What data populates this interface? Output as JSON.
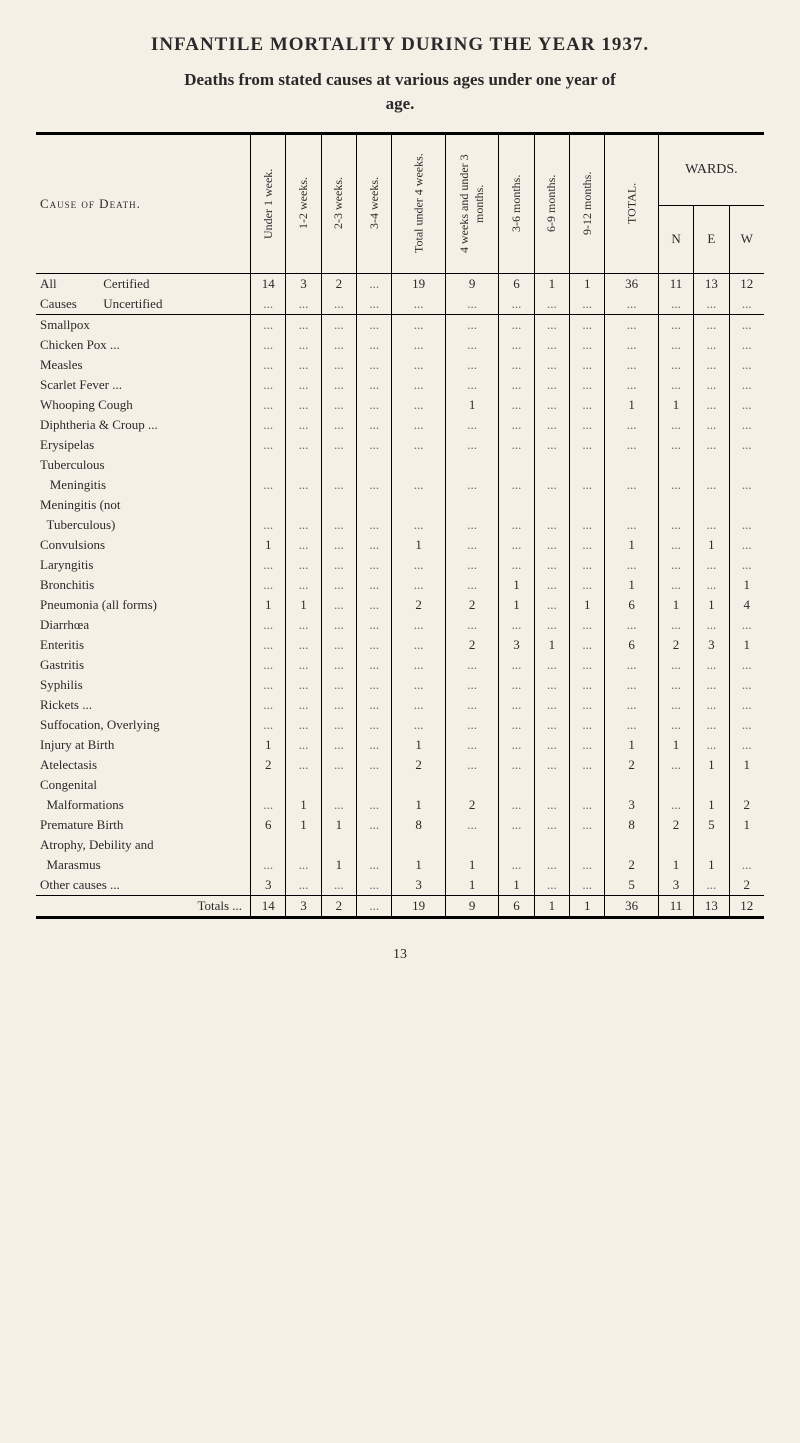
{
  "title": "INFANTILE MORTALITY DURING THE YEAR 1937.",
  "subtitle": "Deaths from stated causes at various ages under one year of",
  "age_word": "age.",
  "page_number": "13",
  "col_headers": {
    "cause": "Cause of Death.",
    "c1": "Under 1 week.",
    "c2": "1-2 weeks.",
    "c3": "2-3 weeks.",
    "c4": "3-4 weeks.",
    "c5": "Total under 4 weeks.",
    "c6": "4 weeks and under 3 months.",
    "c7": "3-6 months.",
    "c8": "6-9 months.",
    "c9": "9-12 months.",
    "c10": "TOTAL.",
    "wards": "WARDS.",
    "N": "N",
    "E": "E",
    "W": "W"
  },
  "summary": {
    "all_label": "All",
    "certified": "Certified",
    "causes_label": "Causes",
    "uncertified": "Uncertified",
    "vals": [
      "14",
      "3",
      "2",
      "...",
      "19",
      "9",
      "6",
      "1",
      "1",
      "36",
      "11",
      "13",
      "12"
    ]
  },
  "rows": [
    {
      "label": "Smallpox",
      "vals": [
        "...",
        "...",
        "...",
        "...",
        "...",
        "...",
        "...",
        "...",
        "...",
        "...",
        "...",
        "...",
        "..."
      ]
    },
    {
      "label": "Chicken Pox ...",
      "vals": [
        "...",
        "...",
        "...",
        "...",
        "...",
        "...",
        "...",
        "...",
        "...",
        "...",
        "...",
        "...",
        "..."
      ]
    },
    {
      "label": "Measles",
      "vals": [
        "...",
        "...",
        "...",
        "...",
        "...",
        "...",
        "...",
        "...",
        "...",
        "...",
        "...",
        "...",
        "..."
      ]
    },
    {
      "label": "Scarlet Fever ...",
      "vals": [
        "...",
        "...",
        "...",
        "...",
        "...",
        "...",
        "...",
        "...",
        "...",
        "...",
        "...",
        "...",
        "..."
      ]
    },
    {
      "label": "Whooping Cough",
      "vals": [
        "...",
        "...",
        "...",
        "...",
        "...",
        "1",
        "...",
        "...",
        "...",
        "1",
        "1",
        "...",
        "..."
      ]
    },
    {
      "label": "Diphtheria & Croup ...",
      "vals": [
        "...",
        "...",
        "...",
        "...",
        "...",
        "...",
        "...",
        "...",
        "...",
        "...",
        "...",
        "...",
        "..."
      ]
    },
    {
      "label": "Erysipelas",
      "vals": [
        "...",
        "...",
        "...",
        "...",
        "...",
        "...",
        "...",
        "...",
        "...",
        "...",
        "...",
        "...",
        "..."
      ]
    },
    {
      "label": "Tuberculous",
      "vals": [
        "",
        "",
        "",
        "",
        "",
        "",
        "",
        "",
        "",
        "",
        "",
        "",
        ""
      ]
    },
    {
      "label": "   Meningitis",
      "vals": [
        "...",
        "...",
        "...",
        "...",
        "...",
        "...",
        "...",
        "...",
        "...",
        "...",
        "...",
        "...",
        "..."
      ]
    },
    {
      "label": "Meningitis (not",
      "vals": [
        "",
        "",
        "",
        "",
        "",
        "",
        "",
        "",
        "",
        "",
        "",
        "",
        ""
      ]
    },
    {
      "label": "  Tuberculous)",
      "vals": [
        "...",
        "...",
        "...",
        "...",
        "...",
        "...",
        "...",
        "...",
        "...",
        "...",
        "...",
        "...",
        "..."
      ]
    },
    {
      "label": "Convulsions",
      "vals": [
        "1",
        "...",
        "...",
        "...",
        "1",
        "...",
        "...",
        "...",
        "...",
        "1",
        "...",
        "1",
        "..."
      ]
    },
    {
      "label": "Laryngitis",
      "vals": [
        "...",
        "...",
        "...",
        "...",
        "...",
        "...",
        "...",
        "...",
        "...",
        "...",
        "...",
        "...",
        "..."
      ]
    },
    {
      "label": "Bronchitis",
      "vals": [
        "...",
        "...",
        "...",
        "...",
        "...",
        "...",
        "1",
        "...",
        "...",
        "1",
        "...",
        "...",
        "1"
      ]
    },
    {
      "label": "Pneumonia (all forms)",
      "vals": [
        "1",
        "1",
        "...",
        "...",
        "2",
        "2",
        "1",
        "...",
        "1",
        "6",
        "1",
        "1",
        "4"
      ]
    },
    {
      "label": "Diarrhœa",
      "vals": [
        "...",
        "...",
        "...",
        "...",
        "...",
        "...",
        "...",
        "...",
        "...",
        "...",
        "...",
        "...",
        "..."
      ]
    },
    {
      "label": "Enteritis",
      "vals": [
        "...",
        "...",
        "...",
        "...",
        "...",
        "2",
        "3",
        "1",
        "...",
        "6",
        "2",
        "3",
        "1"
      ]
    },
    {
      "label": "Gastritis",
      "vals": [
        "...",
        "...",
        "...",
        "...",
        "...",
        "...",
        "...",
        "...",
        "...",
        "...",
        "...",
        "...",
        "..."
      ]
    },
    {
      "label": "Syphilis",
      "vals": [
        "...",
        "...",
        "...",
        "...",
        "...",
        "...",
        "...",
        "...",
        "...",
        "...",
        "...",
        "...",
        "..."
      ]
    },
    {
      "label": "Rickets ...",
      "vals": [
        "...",
        "...",
        "...",
        "...",
        "...",
        "...",
        "...",
        "...",
        "...",
        "...",
        "...",
        "...",
        "..."
      ]
    },
    {
      "label": "Suffocation, Overlying",
      "vals": [
        "...",
        "...",
        "...",
        "...",
        "...",
        "...",
        "...",
        "...",
        "...",
        "...",
        "...",
        "...",
        "..."
      ]
    },
    {
      "label": "Injury at Birth",
      "vals": [
        "1",
        "...",
        "...",
        "...",
        "1",
        "...",
        "...",
        "...",
        "...",
        "1",
        "1",
        "...",
        "..."
      ]
    },
    {
      "label": "Atelectasis",
      "vals": [
        "2",
        "...",
        "...",
        "...",
        "2",
        "...",
        "...",
        "...",
        "...",
        "2",
        "...",
        "1",
        "1"
      ]
    },
    {
      "label": "Congenital",
      "vals": [
        "",
        "",
        "",
        "",
        "",
        "",
        "",
        "",
        "",
        "",
        "",
        "",
        ""
      ]
    },
    {
      "label": "  Malformations",
      "vals": [
        "...",
        "1",
        "...",
        "...",
        "1",
        "2",
        "...",
        "...",
        "...",
        "3",
        "...",
        "1",
        "2"
      ]
    },
    {
      "label": "Premature Birth",
      "vals": [
        "6",
        "1",
        "1",
        "...",
        "8",
        "...",
        "...",
        "...",
        "...",
        "8",
        "2",
        "5",
        "1"
      ]
    },
    {
      "label": "Atrophy, Debility and",
      "vals": [
        "",
        "",
        "",
        "",
        "",
        "",
        "",
        "",
        "",
        "",
        "",
        "",
        ""
      ]
    },
    {
      "label": "  Marasmus",
      "vals": [
        "...",
        "...",
        "1",
        "...",
        "1",
        "1",
        "...",
        "...",
        "...",
        "2",
        "1",
        "1",
        "..."
      ]
    },
    {
      "label": "Other causes ...",
      "vals": [
        "3",
        "...",
        "...",
        "...",
        "3",
        "1",
        "1",
        "...",
        "...",
        "5",
        "3",
        "...",
        "2"
      ]
    }
  ],
  "totals": {
    "label": "Totals ...",
    "vals": [
      "14",
      "3",
      "2",
      "...",
      "19",
      "9",
      "6",
      "1",
      "1",
      "36",
      "11",
      "13",
      "12"
    ]
  }
}
